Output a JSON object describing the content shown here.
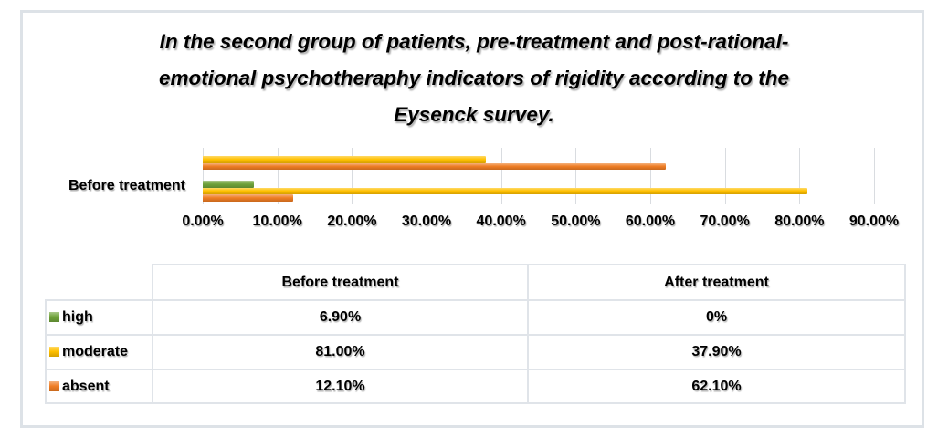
{
  "title": {
    "lines": [
      "In the second group of patients, pre-treatment and post-rational-",
      "emotional psychotheraphy indicators of rigidity according to the",
      "Eysenck survey."
    ]
  },
  "chart_data": {
    "type": "bar",
    "orientation": "horizontal",
    "title": "In the second group of patients, pre-treatment and post-rational-emotional psychotheraphy indicators of rigidity according to the Eysenck survey.",
    "categories": [
      {
        "name": "After treatment",
        "label_visible": false
      },
      {
        "name": "Before treatment",
        "label_visible": true
      }
    ],
    "visible_category_label": "Before treatment",
    "series": [
      {
        "name": "high",
        "color": "#6FA23A",
        "values_by_category": [
          0,
          6.9
        ]
      },
      {
        "name": "moderate",
        "color": "#FFC000",
        "values_by_category": [
          37.9,
          81.0
        ]
      },
      {
        "name": "absent",
        "color": "#EF7D24",
        "values_by_category": [
          62.1,
          12.1
        ]
      }
    ],
    "x_axis": {
      "min": 0,
      "max": 90,
      "tick_labels": [
        "0.00%",
        "10.00%",
        "20.00%",
        "30.00%",
        "40.00%",
        "50.00%",
        "60.00%",
        "70.00%",
        "80.00%",
        "90.00%"
      ]
    },
    "gridlines": true,
    "legend_position": "table-left",
    "gridline_color": "#d9dce0"
  },
  "table": {
    "corner_label": "",
    "column_headers": [
      "Before treatment",
      "After treatment"
    ],
    "rows": [
      {
        "label": "high",
        "swatch_color": "#6FA23A",
        "values": [
          "6.90%",
          "0%"
        ]
      },
      {
        "label": "moderate",
        "swatch_color": "#FFC000",
        "values": [
          "81.00%",
          "37.90%"
        ]
      },
      {
        "label": "absent",
        "swatch_color": "#EF7D24",
        "values": [
          "12.10%",
          "62.10%"
        ]
      }
    ]
  }
}
